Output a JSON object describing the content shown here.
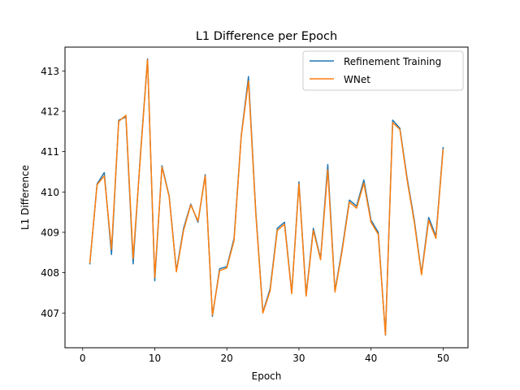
{
  "chart_data": {
    "type": "line",
    "title": "L1 Difference per Epoch",
    "xlabel": "Epoch",
    "ylabel": "L1 Difference",
    "xlim": [
      -2.45,
      53.45
    ],
    "ylim": [
      406.14,
      413.59
    ],
    "xticks": [
      0,
      10,
      20,
      30,
      40,
      50
    ],
    "yticks": [
      407,
      408,
      409,
      410,
      411,
      412,
      413
    ],
    "grid": false,
    "legend_position": "top-right",
    "x": [
      1,
      2,
      3,
      4,
      5,
      6,
      7,
      8,
      9,
      10,
      11,
      12,
      13,
      14,
      15,
      16,
      17,
      18,
      19,
      20,
      21,
      22,
      23,
      24,
      25,
      26,
      27,
      28,
      29,
      30,
      31,
      32,
      33,
      34,
      35,
      36,
      37,
      38,
      39,
      40,
      41,
      42,
      43,
      44,
      45,
      46,
      47,
      48,
      49,
      50
    ],
    "series": [
      {
        "name": "Refinement Training",
        "color": "#1f77b4",
        "values": [
          408.22,
          410.2,
          410.48,
          408.45,
          411.78,
          411.86,
          408.22,
          410.9,
          413.3,
          407.8,
          410.65,
          409.9,
          408.05,
          409.1,
          409.7,
          409.25,
          410.43,
          406.92,
          408.1,
          408.15,
          408.85,
          411.4,
          412.86,
          409.55,
          407.02,
          407.6,
          409.1,
          409.25,
          407.5,
          410.25,
          407.45,
          409.1,
          408.35,
          410.68,
          407.55,
          408.6,
          409.8,
          409.65,
          410.3,
          409.3,
          409.0,
          406.45,
          411.78,
          411.58,
          410.35,
          409.3,
          407.98,
          409.37,
          408.9,
          411.1
        ]
      },
      {
        "name": "WNet",
        "color": "#ff7f0e",
        "values": [
          408.25,
          410.18,
          410.4,
          408.58,
          411.75,
          411.9,
          408.35,
          410.85,
          413.28,
          407.88,
          410.62,
          409.88,
          408.02,
          409.05,
          409.68,
          409.28,
          410.4,
          406.95,
          408.05,
          408.12,
          408.8,
          411.38,
          412.75,
          409.5,
          407.0,
          407.55,
          409.05,
          409.2,
          407.48,
          410.2,
          407.42,
          409.05,
          408.32,
          410.55,
          407.52,
          408.55,
          409.75,
          409.6,
          410.22,
          409.25,
          408.95,
          406.46,
          411.72,
          411.55,
          410.3,
          409.25,
          407.95,
          409.3,
          408.85,
          411.05
        ]
      }
    ]
  }
}
